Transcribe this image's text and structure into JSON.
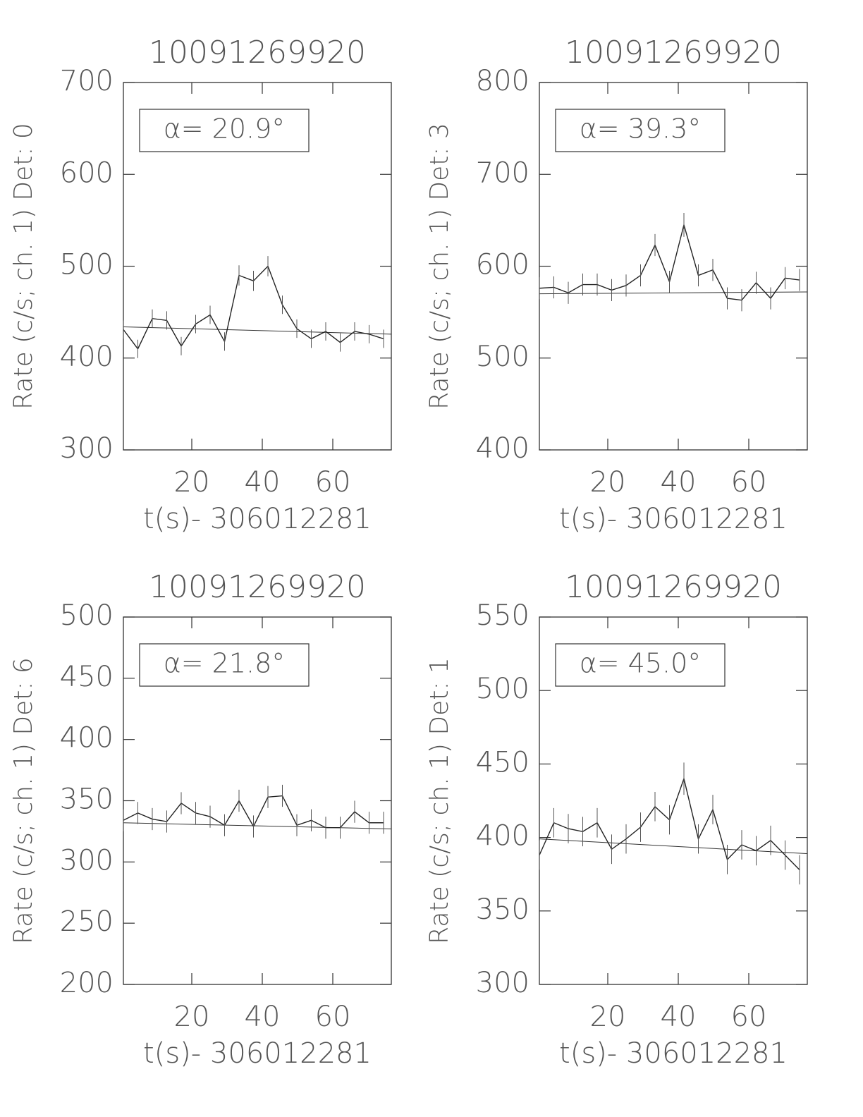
{
  "chart_data": [
    {
      "type": "line",
      "title": "10091269920",
      "xlabel": "t(s)- 306012281",
      "ylabel": "Rate (c/s; ch. 1) Det: 0",
      "annotation": "α= 20.9°",
      "x": [
        0.6,
        4.7,
        8.8,
        12.9,
        17.0,
        21.1,
        25.2,
        29.3,
        33.4,
        37.5,
        41.6,
        45.7,
        49.8,
        53.9,
        58.0,
        62.1,
        66.2,
        70.3,
        74.4
      ],
      "series": [
        {
          "color": "#222222",
          "values": [
            431,
            410,
            443,
            441,
            413,
            437,
            447,
            418,
            490,
            484,
            500,
            458,
            432,
            421,
            429,
            417,
            429,
            426,
            421
          ],
          "errors": [
            10,
            10,
            10,
            10,
            10,
            10,
            10,
            10,
            11,
            11,
            11,
            10,
            10,
            10,
            10,
            10,
            10,
            10,
            10
          ]
        }
      ],
      "trend": {
        "x": [
          0.6,
          76.6
        ],
        "values": [
          434,
          426
        ]
      },
      "xlim": [
        0.6,
        76.6
      ],
      "ylim": [
        300,
        700
      ],
      "xticks": [
        20,
        40,
        60
      ],
      "yticks": [
        300,
        400,
        500,
        600,
        700
      ]
    },
    {
      "type": "line",
      "title": "10091269920",
      "xlabel": "t(s)- 306012281",
      "ylabel": "Rate (c/s; ch. 1) Det: 3",
      "annotation": "α= 39.3°",
      "x": [
        0.6,
        4.7,
        8.8,
        12.9,
        17.0,
        21.1,
        25.2,
        29.3,
        33.4,
        37.5,
        41.6,
        45.7,
        49.8,
        53.9,
        58.0,
        62.1,
        66.2,
        70.3,
        74.4
      ],
      "series": [
        {
          "color": "#222222",
          "values": [
            576,
            577,
            571,
            580,
            580,
            574,
            579,
            590,
            623,
            583,
            645,
            590,
            596,
            565,
            563,
            582,
            565,
            587,
            585
          ],
          "errors": [
            12,
            12,
            12,
            12,
            12,
            12,
            12,
            12,
            12,
            12,
            13,
            12,
            12,
            12,
            12,
            12,
            12,
            12,
            12
          ]
        }
      ],
      "trend": {
        "x": [
          0.6,
          76.6
        ],
        "values": [
          570,
          572
        ]
      },
      "xlim": [
        0.6,
        76.6
      ],
      "ylim": [
        400,
        800
      ],
      "xticks": [
        20,
        40,
        60
      ],
      "yticks": [
        400,
        500,
        600,
        700,
        800
      ]
    },
    {
      "type": "line",
      "title": "10091269920",
      "xlabel": "t(s)- 306012281",
      "ylabel": "Rate (c/s; ch. 1) Det: 6",
      "annotation": "α= 21.8°",
      "x": [
        0.6,
        4.7,
        8.8,
        12.9,
        17.0,
        21.1,
        25.2,
        29.3,
        33.4,
        37.5,
        41.6,
        45.7,
        49.8,
        53.9,
        58.0,
        62.1,
        66.2,
        70.3,
        74.4
      ],
      "series": [
        {
          "color": "#222222",
          "values": [
            334,
            340,
            335,
            333,
            348,
            340,
            337,
            330,
            350,
            329,
            353,
            354,
            330,
            334,
            328,
            328,
            341,
            332,
            332
          ],
          "errors": [
            9,
            9,
            9,
            9,
            9,
            9,
            9,
            9,
            9,
            9,
            9,
            9,
            9,
            9,
            9,
            9,
            9,
            9,
            9
          ]
        }
      ],
      "trend": {
        "x": [
          0.6,
          76.6
        ],
        "values": [
          332,
          327
        ]
      },
      "xlim": [
        0.6,
        76.6
      ],
      "ylim": [
        200,
        500
      ],
      "xticks": [
        20,
        40,
        60
      ],
      "yticks": [
        200,
        250,
        300,
        350,
        400,
        450,
        500
      ]
    },
    {
      "type": "line",
      "title": "10091269920",
      "xlabel": "t(s)- 306012281",
      "ylabel": "Rate (c/s; ch. 1) Det: 1",
      "annotation": "α= 45.0°",
      "x": [
        0.6,
        4.7,
        8.8,
        12.9,
        17.0,
        21.1,
        25.2,
        29.3,
        33.4,
        37.5,
        41.6,
        45.7,
        49.8,
        53.9,
        58.0,
        62.1,
        66.2,
        70.3,
        74.4
      ],
      "series": [
        {
          "color": "#222222",
          "values": [
            388,
            410,
            406,
            404,
            410,
            392,
            399,
            407,
            421,
            412,
            440,
            399,
            419,
            385,
            395,
            391,
            398,
            388,
            378
          ],
          "errors": [
            10,
            10,
            10,
            10,
            10,
            10,
            10,
            10,
            10,
            10,
            11,
            10,
            10,
            10,
            10,
            10,
            10,
            10,
            10
          ]
        }
      ],
      "trend": {
        "x": [
          0.6,
          76.6
        ],
        "values": [
          399,
          389
        ]
      },
      "xlim": [
        0.6,
        76.6
      ],
      "ylim": [
        300,
        550
      ],
      "xticks": [
        20,
        40,
        60
      ],
      "yticks": [
        300,
        350,
        400,
        450,
        500,
        550
      ]
    }
  ]
}
